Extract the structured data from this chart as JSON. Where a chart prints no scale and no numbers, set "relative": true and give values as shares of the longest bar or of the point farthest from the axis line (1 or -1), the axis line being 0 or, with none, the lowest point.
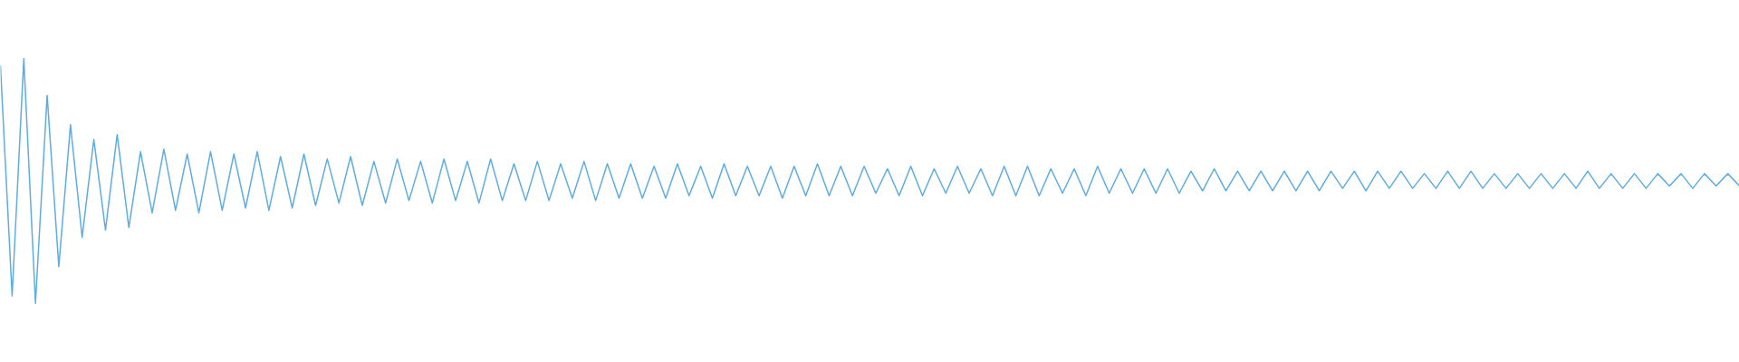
{
  "chart_data": {
    "type": "line",
    "relative": true,
    "tick_labels": false,
    "categories": [
      null,
      null,
      null,
      null,
      null,
      null,
      null,
      null,
      null,
      null,
      null,
      null,
      null,
      null,
      null,
      null,
      null,
      null,
      null,
      null,
      null,
      null,
      null,
      null,
      null,
      null,
      null,
      null,
      null,
      null,
      null,
      null,
      null,
      null,
      null,
      null,
      null,
      null,
      null,
      null,
      null,
      null,
      null,
      null,
      null,
      null,
      null,
      null,
      null,
      null,
      null,
      null,
      null,
      null,
      null,
      null,
      null,
      null,
      null,
      null,
      null,
      null,
      null,
      null,
      null,
      null,
      null,
      null,
      null,
      null,
      null,
      null,
      null,
      null,
      null,
      null,
      null,
      null,
      null,
      null,
      null,
      null,
      null,
      null,
      null,
      null,
      null,
      null,
      null,
      null,
      null,
      null,
      null,
      null,
      null,
      null,
      null,
      null,
      null,
      null,
      null,
      null,
      null,
      null,
      null,
      null,
      null,
      null,
      null,
      null,
      null,
      null,
      null,
      null,
      null,
      null,
      null,
      null,
      null,
      null,
      null,
      null,
      null,
      null,
      null,
      null,
      null,
      null,
      null,
      null,
      null,
      null,
      null,
      null,
      null,
      null,
      null,
      null,
      null,
      null,
      null,
      null,
      null,
      null,
      null,
      null,
      null,
      null,
      null,
      null
    ],
    "series": [
      {
        "color": "#5dade2",
        "values": [
          0.97,
          0.03,
          1.0,
          0.0,
          0.85,
          0.15,
          0.73,
          0.27,
          0.67,
          0.3,
          0.69,
          0.31,
          0.62,
          0.37,
          0.63,
          0.38,
          0.61,
          0.37,
          0.62,
          0.38,
          0.61,
          0.39,
          0.62,
          0.38,
          0.6,
          0.39,
          0.61,
          0.4,
          0.59,
          0.41,
          0.6,
          0.4,
          0.58,
          0.41,
          0.59,
          0.42,
          0.58,
          0.41,
          0.59,
          0.42,
          0.58,
          0.41,
          0.59,
          0.42,
          0.57,
          0.42,
          0.58,
          0.42,
          0.57,
          0.43,
          0.58,
          0.42,
          0.57,
          0.43,
          0.57,
          0.43,
          0.56,
          0.43,
          0.57,
          0.44,
          0.56,
          0.43,
          0.57,
          0.44,
          0.56,
          0.44,
          0.56,
          0.43,
          0.56,
          0.44,
          0.57,
          0.44,
          0.56,
          0.44,
          0.56,
          0.45,
          0.55,
          0.44,
          0.56,
          0.44,
          0.55,
          0.45,
          0.56,
          0.45,
          0.55,
          0.44,
          0.56,
          0.44,
          0.56,
          0.44,
          0.55,
          0.45,
          0.55,
          0.44,
          0.56,
          0.45,
          0.55,
          0.45,
          0.55,
          0.45,
          0.55,
          0.45,
          0.54,
          0.46,
          0.55,
          0.46,
          0.54,
          0.46,
          0.54,
          0.46,
          0.54,
          0.46,
          0.54,
          0.46,
          0.54,
          0.47,
          0.54,
          0.46,
          0.54,
          0.47,
          0.54,
          0.47,
          0.53,
          0.47,
          0.54,
          0.47,
          0.54,
          0.47,
          0.53,
          0.47,
          0.53,
          0.47,
          0.53,
          0.47,
          0.53,
          0.47,
          0.54,
          0.47,
          0.53,
          0.47,
          0.53,
          0.47,
          0.53,
          0.48,
          0.53,
          0.47,
          0.53,
          0.48,
          0.53,
          0.48
        ]
      }
    ]
  }
}
